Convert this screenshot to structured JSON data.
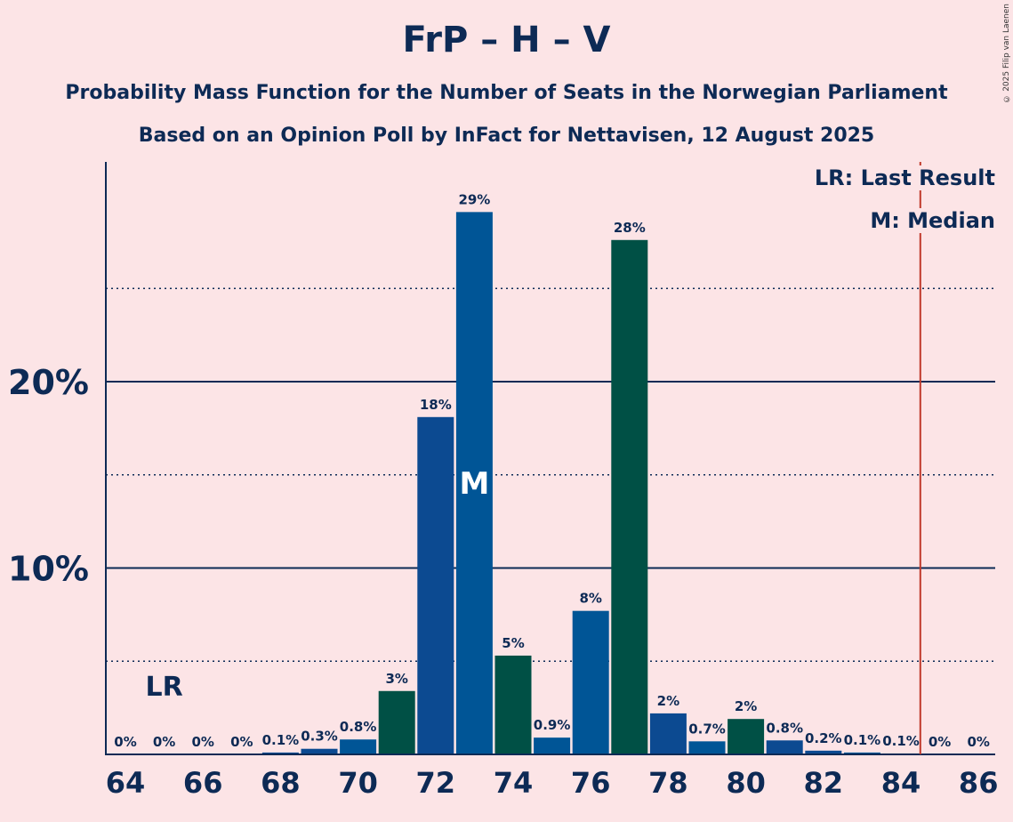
{
  "header": {
    "title": "FrP – H – V",
    "subtitle1": "Probability Mass Function for the Number of Seats in the Norwegian Parliament",
    "subtitle2": "Based on an Opinion Poll by InFact for Nettavisen, 12 August 2025",
    "copyright": "© 2025 Filip van Laenen"
  },
  "legend": {
    "last_result": "LR: Last Result",
    "median": "M: Median"
  },
  "colors": {
    "background": "#fce4e6",
    "bar_blue_dark": "#0c4a91",
    "bar_blue": "#005596",
    "bar_green": "#005045",
    "axis": "#0d2a55",
    "lr_line": "#c0392b"
  },
  "chart_data": {
    "type": "bar",
    "x": [
      64,
      65,
      66,
      67,
      68,
      69,
      70,
      71,
      72,
      73,
      74,
      75,
      76,
      77,
      78,
      79,
      80,
      81,
      82,
      83,
      84,
      85,
      86
    ],
    "values": [
      0,
      0,
      0,
      0,
      0.1,
      0.3,
      0.8,
      3.4,
      18.1,
      29.1,
      5.3,
      0.9,
      7.7,
      27.6,
      2.2,
      0.7,
      1.9,
      0.75,
      0.2,
      0.1,
      0.05,
      0,
      0
    ],
    "labels": [
      "0%",
      "0%",
      "0%",
      "0%",
      "0.1%",
      "0.3%",
      "0.8%",
      "3%",
      "18%",
      "29%",
      "5%",
      "0.9%",
      "8%",
      "28%",
      "2%",
      "0.7%",
      "2%",
      "0.8%",
      "0.2%",
      "0.1%",
      "0.1%",
      "0%",
      "0%"
    ],
    "bar_colors": [
      "blue_dark",
      "blue_dark",
      "blue_dark",
      "blue_dark",
      "blue_dark",
      "blue_dark",
      "blue",
      "green",
      "blue_dark",
      "blue",
      "green",
      "blue",
      "blue",
      "green",
      "blue_dark",
      "blue",
      "green",
      "blue_dark",
      "blue_dark",
      "blue",
      "green",
      "blue",
      "blue"
    ],
    "x_tick_labels": [
      "64",
      "66",
      "68",
      "70",
      "72",
      "74",
      "76",
      "78",
      "80",
      "82",
      "84",
      "86"
    ],
    "y_tick_labels": [
      "10%",
      "20%"
    ],
    "y_ticks": [
      10,
      20
    ],
    "y_minor_ticks": [
      5,
      15,
      25
    ],
    "ylim": [
      0,
      31.7
    ],
    "last_result": {
      "x": 65,
      "label": "LR"
    },
    "median": {
      "x": 73,
      "label": "M"
    },
    "majority_line_x": 84.5
  }
}
